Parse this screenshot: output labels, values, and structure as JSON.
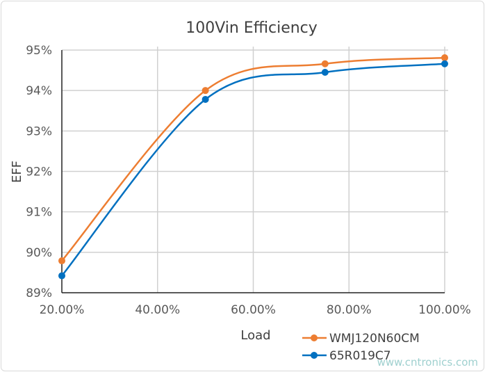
{
  "chart_data": {
    "type": "line",
    "title": "100Vin Efficiency",
    "xlabel": "Load",
    "ylabel": "EFF",
    "x": [
      20,
      50,
      75,
      100
    ],
    "xlim": [
      20,
      100
    ],
    "ylim": [
      89,
      95
    ],
    "xticks": [
      "20.00%",
      "40.00%",
      "60.00%",
      "80.00%",
      "100.00%"
    ],
    "xtick_values": [
      20,
      40,
      60,
      80,
      100
    ],
    "yticks": [
      "89%",
      "90%",
      "91%",
      "92%",
      "93%",
      "94%",
      "95%"
    ],
    "ytick_values": [
      89,
      90,
      91,
      92,
      93,
      94,
      95
    ],
    "grid": true,
    "legend_position": "bottom-right",
    "series": [
      {
        "name": "WMJ120N60CM",
        "color": "#ed7d31",
        "values": [
          89.79,
          94.0,
          94.66,
          94.81
        ]
      },
      {
        "name": "65R019C7",
        "color": "#0070c0",
        "values": [
          89.42,
          93.78,
          94.45,
          94.66
        ]
      }
    ]
  },
  "watermark": "www.cntronics.com"
}
